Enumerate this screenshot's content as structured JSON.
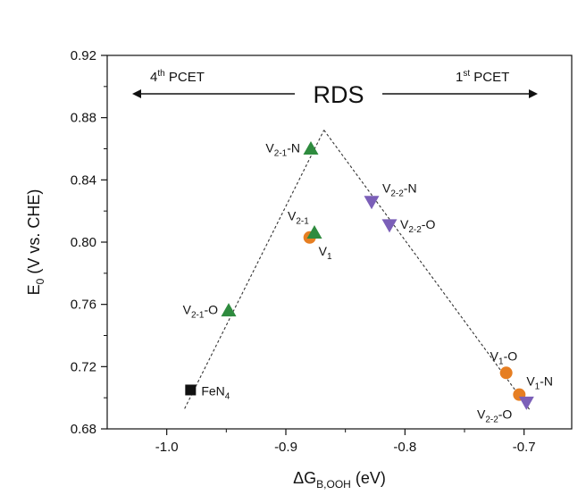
{
  "chart_data": {
    "type": "scatter",
    "title": "",
    "xlabel": {
      "base": "ΔG",
      "sub": "B,OOH",
      "unit": " (eV)"
    },
    "ylabel": {
      "base": "E",
      "sub": "0",
      "unit": " (V vs. CHE)"
    },
    "xlim": [
      -1.05,
      -0.66
    ],
    "ylim": [
      0.68,
      0.92
    ],
    "x_ticks": [
      -1.0,
      -0.9,
      -0.8,
      -0.7
    ],
    "x_tick_labels": [
      "-1.0",
      "-0.9",
      "-0.8",
      "-0.7"
    ],
    "y_ticks": [
      0.68,
      0.72,
      0.76,
      0.8,
      0.84,
      0.88,
      0.92
    ],
    "y_tick_labels": [
      "0.68",
      "0.72",
      "0.76",
      "0.80",
      "0.84",
      "0.88",
      "0.92"
    ],
    "fit_lines": [
      {
        "name": "4th PCET branch",
        "x": [
          -0.985,
          -0.868
        ],
        "y": [
          0.693,
          0.872
        ],
        "color": "#333333",
        "dashed": true
      },
      {
        "name": "1st PCET branch",
        "x": [
          -0.868,
          -0.695
        ],
        "y": [
          0.872,
          0.692
        ],
        "color": "#333333",
        "dashed": true
      }
    ],
    "series": [
      {
        "name": "FeN4",
        "marker": "square",
        "color": "#111111",
        "points": [
          {
            "x": -0.98,
            "y": 0.705,
            "label": {
              "base": "FeN",
              "sub": "4",
              "suffix": ""
            }
          }
        ]
      },
      {
        "name": "V1",
        "marker": "circle",
        "color": "#e67e22",
        "points": [
          {
            "x": -0.88,
            "y": 0.803,
            "label": {
              "base": "V",
              "sub": "1",
              "suffix": ""
            }
          },
          {
            "x": -0.715,
            "y": 0.716,
            "label": {
              "base": "V",
              "sub": "1",
              "suffix": "-O"
            }
          },
          {
            "x": -0.704,
            "y": 0.702,
            "label": {
              "base": "V",
              "sub": "1",
              "suffix": "-N"
            }
          }
        ]
      },
      {
        "name": "V2-1",
        "marker": "triangle-up",
        "color": "#2e8b3e",
        "points": [
          {
            "x": -0.876,
            "y": 0.806,
            "label": {
              "base": "V",
              "sub": "2-1",
              "suffix": ""
            }
          },
          {
            "x": -0.879,
            "y": 0.86,
            "label": {
              "base": "V",
              "sub": "2-1",
              "suffix": "-N"
            }
          },
          {
            "x": -0.948,
            "y": 0.756,
            "label": {
              "base": "V",
              "sub": "2-1",
              "suffix": "-O"
            }
          }
        ]
      },
      {
        "name": "V2-2",
        "marker": "triangle-down",
        "color": "#7b5fb8",
        "points": [
          {
            "x": -0.828,
            "y": 0.826,
            "label": {
              "base": "V",
              "sub": "2-2",
              "suffix": "-N"
            }
          },
          {
            "x": -0.813,
            "y": 0.811,
            "label": {
              "base": "V",
              "sub": "2-2",
              "suffix": "-O"
            }
          },
          {
            "x": -0.698,
            "y": 0.697,
            "label": {
              "base": "V",
              "sub": "2-2",
              "suffix": "-O"
            }
          }
        ]
      }
    ],
    "annotations": {
      "center": "RDS",
      "left": {
        "ordinal": "4",
        "sup": "th",
        "text": " PCET"
      },
      "right": {
        "ordinal": "1",
        "sup": "st",
        "text": " PCET"
      }
    }
  }
}
